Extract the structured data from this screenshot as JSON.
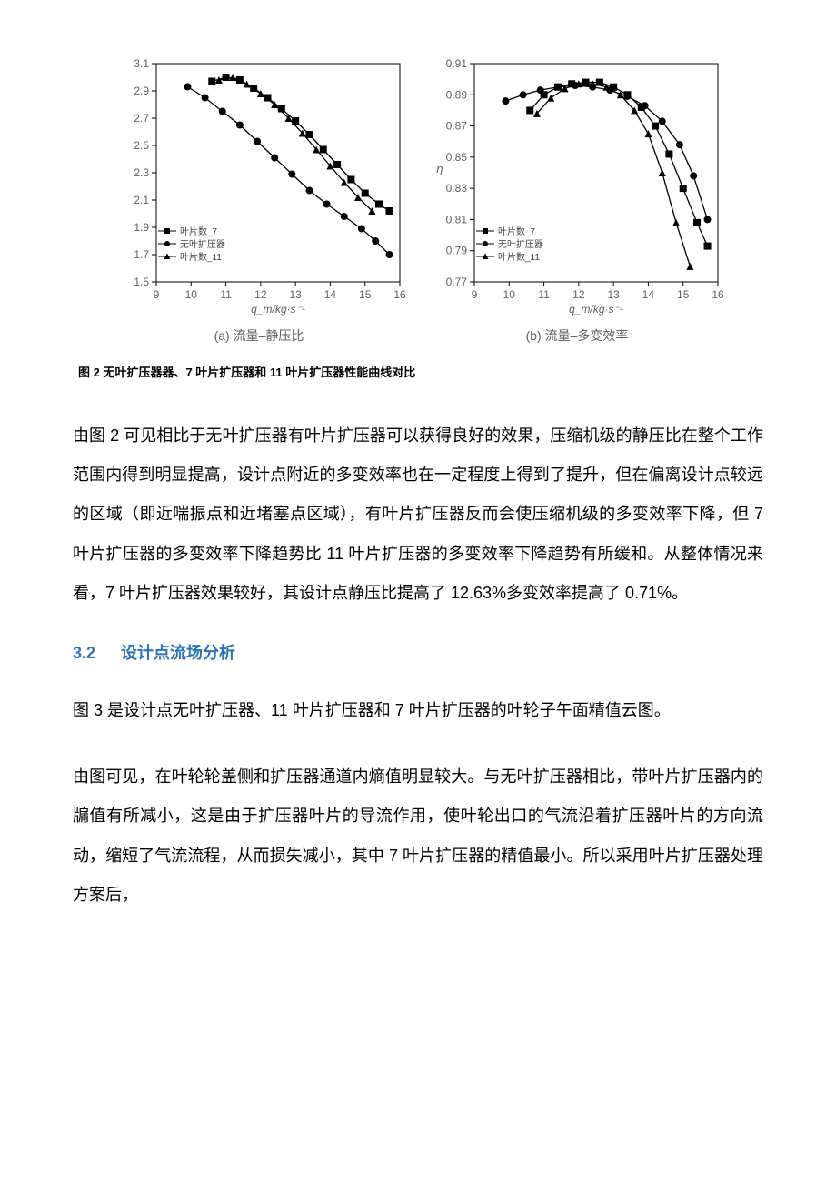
{
  "figure2": {
    "caption": "图 2 无叶扩压器器、7 叶片扩压器和 11 叶片扩压器性能曲线对比",
    "xlabel": "q_m/kg·s⁻¹",
    "charts": {
      "a": {
        "type": "line",
        "sublabel": "(a) 流量–静压比",
        "xlim": [
          9,
          16
        ],
        "xticks": [
          9,
          10,
          11,
          12,
          13,
          14,
          15,
          16
        ],
        "ylim": [
          1.5,
          3.1
        ],
        "yticks": [
          1.5,
          1.7,
          1.9,
          2.1,
          2.3,
          2.5,
          2.7,
          2.9,
          3.1
        ],
        "background_color": "#ffffff",
        "axis_color": "#000000",
        "marker_size": 4,
        "legend_pos": "bottom-left",
        "series": [
          {
            "name": "叶片数_7",
            "marker": "square",
            "color": "#000000",
            "x": [
              10.6,
              11.0,
              11.4,
              11.8,
              12.2,
              12.6,
              13.0,
              13.4,
              13.8,
              14.2,
              14.6,
              15.0,
              15.4,
              15.7
            ],
            "y": [
              2.97,
              3.0,
              2.98,
              2.92,
              2.85,
              2.77,
              2.68,
              2.58,
              2.47,
              2.36,
              2.25,
              2.15,
              2.07,
              2.02
            ]
          },
          {
            "name": "无叶扩压器",
            "marker": "circle",
            "color": "#000000",
            "x": [
              9.9,
              10.4,
              10.9,
              11.4,
              11.9,
              12.4,
              12.9,
              13.4,
              13.9,
              14.4,
              14.9,
              15.3,
              15.7
            ],
            "y": [
              2.93,
              2.85,
              2.75,
              2.65,
              2.53,
              2.41,
              2.29,
              2.17,
              2.07,
              1.98,
              1.89,
              1.8,
              1.7
            ]
          },
          {
            "name": "叶片数_11",
            "marker": "triangle",
            "color": "#000000",
            "x": [
              10.8,
              11.2,
              11.6,
              12.0,
              12.4,
              12.8,
              13.2,
              13.6,
              14.0,
              14.4,
              14.8,
              15.2
            ],
            "y": [
              2.98,
              3.0,
              2.95,
              2.88,
              2.8,
              2.7,
              2.59,
              2.47,
              2.35,
              2.23,
              2.12,
              2.02
            ]
          }
        ]
      },
      "b": {
        "type": "line",
        "sublabel": "(b) 流量–多变效率",
        "xlim": [
          9,
          16
        ],
        "xticks": [
          9,
          10,
          11,
          12,
          13,
          14,
          15,
          16
        ],
        "ylim": [
          0.77,
          0.91
        ],
        "yticks": [
          0.77,
          0.79,
          0.81,
          0.83,
          0.85,
          0.87,
          0.89,
          0.91
        ],
        "ylabel": "η",
        "background_color": "#ffffff",
        "axis_color": "#000000",
        "marker_size": 4,
        "legend_pos": "bottom-left",
        "series": [
          {
            "name": "叶片数_7",
            "marker": "square",
            "color": "#000000",
            "x": [
              10.6,
              11.0,
              11.4,
              11.8,
              12.2,
              12.6,
              13.0,
              13.4,
              13.8,
              14.2,
              14.6,
              15.0,
              15.4,
              15.7
            ],
            "y": [
              0.88,
              0.89,
              0.895,
              0.897,
              0.898,
              0.898,
              0.895,
              0.89,
              0.882,
              0.87,
              0.852,
              0.83,
              0.808,
              0.793
            ]
          },
          {
            "name": "无叶扩压器",
            "marker": "circle",
            "color": "#000000",
            "x": [
              9.9,
              10.4,
              10.9,
              11.4,
              11.9,
              12.4,
              12.9,
              13.4,
              13.9,
              14.4,
              14.9,
              15.3,
              15.7
            ],
            "y": [
              0.886,
              0.89,
              0.893,
              0.895,
              0.896,
              0.895,
              0.893,
              0.889,
              0.883,
              0.873,
              0.858,
              0.838,
              0.81
            ]
          },
          {
            "name": "叶片数_11",
            "marker": "triangle",
            "color": "#000000",
            "x": [
              10.8,
              11.2,
              11.6,
              12.0,
              12.4,
              12.8,
              13.2,
              13.6,
              14.0,
              14.4,
              14.8,
              15.2
            ],
            "y": [
              0.878,
              0.888,
              0.894,
              0.897,
              0.897,
              0.895,
              0.89,
              0.88,
              0.865,
              0.84,
              0.808,
              0.78
            ]
          }
        ]
      }
    }
  },
  "para1": "由图 2 可见相比于无叶扩压器有叶片扩压器可以获得良好的效果，压缩机级的静压比在整个工作范围内得到明显提高，设计点附近的多变效率也在一定程度上得到了提升，但在偏离设计点较远的区域（即近喘振点和近堵塞点区域），有叶片扩压器反而会使压缩机级的多变效率下降，但 7 叶片扩压器的多变效率下降趋势比 11 叶片扩压器的多变效率下降趋势有所缓和。从整体情况来看，7 叶片扩压器效果较好，其设计点静压比提高了 12.63%多变效率提高了 0.71%。",
  "section": {
    "num": "3.2",
    "title": "设计点流场分析"
  },
  "para2": "图 3 是设计点无叶扩压器、11 叶片扩压器和 7 叶片扩压器的叶轮子午面精值云图。",
  "para3": "由图可见，在叶轮轮盖侧和扩压器通道内熵值明显较大。与无叶扩压器相比，带叶片扩压器内的牖值有所减小，这是由于扩压器叶片的导流作用，使叶轮出口的气流沿着扩压器叶片的方向流动，缩短了气流流程，从而损失减小，其中 7 叶片扩压器的精值最小。所以采用叶片扩压器处理方案后，"
}
